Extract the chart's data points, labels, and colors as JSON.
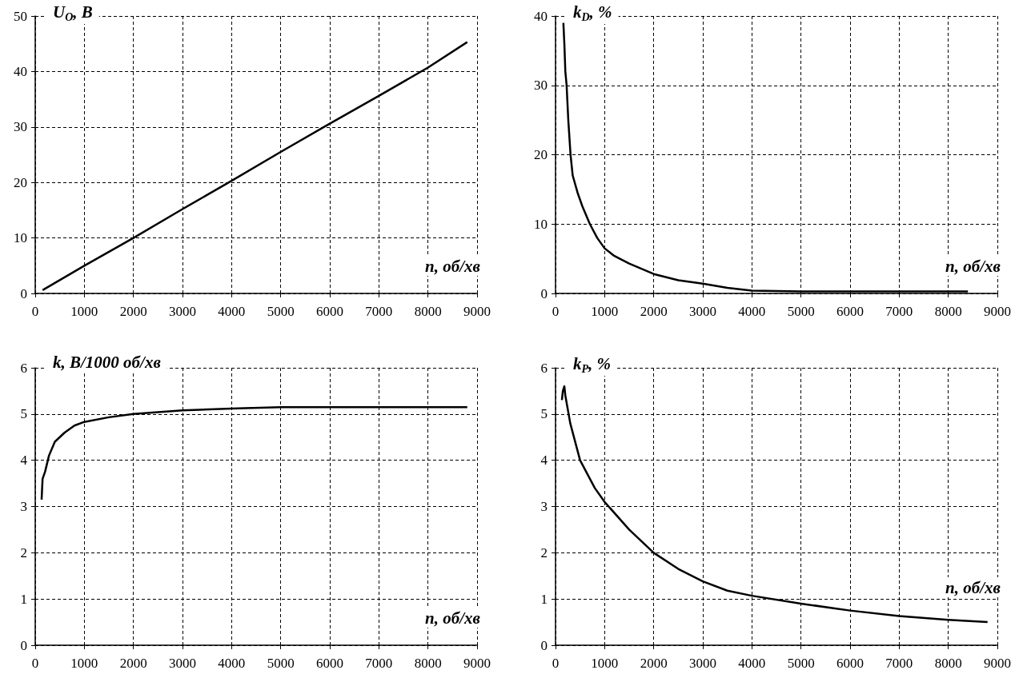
{
  "chart_data": [
    {
      "type": "line",
      "ylabel": "U$_{O}$, B",
      "xlabel": "n, об/хв",
      "xlim": [
        0,
        9000
      ],
      "xticks": [
        0,
        1000,
        2000,
        3000,
        4000,
        5000,
        6000,
        7000,
        8000,
        9000
      ],
      "ylim": [
        0,
        50
      ],
      "yticks": [
        0,
        10,
        20,
        30,
        40,
        50
      ],
      "grid": true,
      "line_style": "solid",
      "marker": "none",
      "series": [
        {
          "color": "#000000",
          "x": [
            150,
            1000,
            2000,
            3000,
            4000,
            5000,
            6000,
            7000,
            8000,
            8800
          ],
          "values": [
            0.6,
            5,
            10,
            15.2,
            20.3,
            25.5,
            30.6,
            35.6,
            40.7,
            45.3
          ]
        }
      ]
    },
    {
      "type": "line",
      "ylabel": "k$_{D}$, %",
      "xlabel": "n, об/хв",
      "xlim": [
        0,
        9000
      ],
      "xticks": [
        0,
        1000,
        2000,
        3000,
        4000,
        5000,
        6000,
        7000,
        8000,
        9000
      ],
      "ylim": [
        0,
        40
      ],
      "yticks": [
        0,
        10,
        20,
        30,
        40
      ],
      "grid": true,
      "line_style": "solid",
      "marker": "none",
      "series": [
        {
          "color": "#000000",
          "x": [
            160,
            180,
            200,
            226,
            260,
            306,
            350,
            450,
            550,
            700,
            850,
            1000,
            1200,
            1500,
            2000,
            2500,
            3000,
            3500,
            4000,
            5000,
            6000,
            7000,
            8000,
            8400
          ],
          "values": [
            39,
            36,
            32,
            30,
            25,
            20,
            17,
            14.5,
            12.5,
            10,
            8,
            6.5,
            5.4,
            4.3,
            2.8,
            1.9,
            1.4,
            0.8,
            0.4,
            0.3,
            0.3,
            0.3,
            0.3,
            0.3
          ]
        }
      ]
    },
    {
      "type": "line",
      "ylabel": "k, B/1000 об/хв",
      "xlabel": "n, об/хв",
      "xlim": [
        0,
        9000
      ],
      "xticks": [
        0,
        1000,
        2000,
        3000,
        4000,
        5000,
        6000,
        7000,
        8000,
        9000
      ],
      "ylim": [
        0,
        6
      ],
      "yticks": [
        0,
        1,
        2,
        3,
        4,
        5,
        6
      ],
      "grid": true,
      "line_style": "solid",
      "marker": "none",
      "series": [
        {
          "color": "#000000",
          "x": [
            130,
            150,
            200,
            280,
            400,
            600,
            800,
            1000,
            1500,
            2000,
            3000,
            4000,
            5000,
            6000,
            7000,
            8000,
            8800
          ],
          "values": [
            3.15,
            3.6,
            3.75,
            4.1,
            4.4,
            4.6,
            4.75,
            4.83,
            4.93,
            5.0,
            5.08,
            5.12,
            5.15,
            5.15,
            5.15,
            5.15,
            5.15
          ]
        }
      ]
    },
    {
      "type": "line",
      "ylabel": "k$_{P}$, %",
      "xlabel": "n, об/хв",
      "xlim": [
        0,
        9000
      ],
      "xticks": [
        0,
        1000,
        2000,
        3000,
        4000,
        5000,
        6000,
        7000,
        8000,
        9000
      ],
      "ylim": [
        0,
        6
      ],
      "yticks": [
        0,
        1,
        2,
        3,
        4,
        5,
        6
      ],
      "grid": true,
      "line_style": "solid",
      "marker": "none",
      "series": [
        {
          "color": "#000000",
          "x": [
            130,
            150,
            180,
            200,
            300,
            500,
            800,
            1000,
            1500,
            2000,
            2500,
            3000,
            3500,
            4000,
            5000,
            6000,
            7000,
            8000,
            8800
          ],
          "values": [
            5.3,
            5.5,
            5.6,
            5.4,
            4.8,
            4.0,
            3.4,
            3.1,
            2.5,
            2.0,
            1.65,
            1.38,
            1.18,
            1.07,
            0.9,
            0.75,
            0.63,
            0.55,
            0.5
          ]
        }
      ]
    }
  ]
}
